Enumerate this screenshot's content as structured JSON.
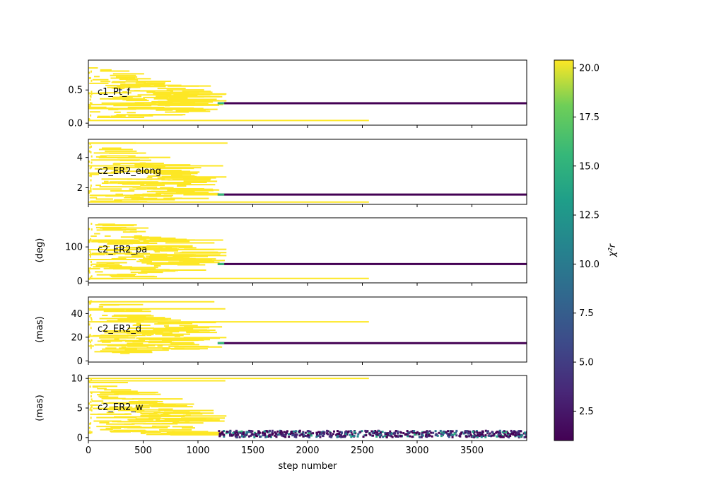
{
  "chart_data": {
    "type": "scatter",
    "xlabel": "step number",
    "xlim": [
      0,
      4000
    ],
    "xticks": [
      0,
      500,
      1000,
      1500,
      2000,
      2500,
      3000,
      3500
    ],
    "colors": {
      "low": "#440154",
      "high": "#fde725"
    },
    "colorbar": {
      "label": "χ²r",
      "range": [
        1.0,
        20.4
      ],
      "ticks": [
        2.5,
        5.0,
        7.5,
        10.0,
        12.5,
        15.0,
        17.5,
        20.0
      ],
      "tick_labels": [
        "2.5",
        "5.0",
        "7.5",
        "10.0",
        "12.5",
        "15.0",
        "17.5",
        "20.0"
      ]
    },
    "panels": [
      {
        "name": "c1_Pt_f",
        "ylabel": "",
        "ylim": [
          -0.03,
          0.95
        ],
        "yticks": [
          0.0,
          0.5
        ],
        "ytick_labels": [
          "0.0",
          "0.5"
        ],
        "converged": 0.3,
        "spread": 0.006,
        "early_min": 0.0,
        "early_max": 0.85,
        "lines": [
          {
            "y": 0.04,
            "x_end": 2560
          },
          {
            "y": 0.22,
            "x_end": 1050
          },
          {
            "y": 0.28,
            "x_end": 1230
          }
        ]
      },
      {
        "name": "c2_ER2_elong",
        "ylabel": "",
        "ylim": [
          0.9,
          5.2
        ],
        "yticks": [
          2,
          4
        ],
        "ytick_labels": [
          "2",
          "4"
        ],
        "converged": 1.55,
        "spread": 0.02,
        "early_min": 1.0,
        "early_max": 5.0,
        "lines": [
          {
            "y": 1.05,
            "x_end": 2560
          },
          {
            "y": 4.95,
            "x_end": 1270
          },
          {
            "y": 3.45,
            "x_end": 1230
          }
        ]
      },
      {
        "name": "c2_ER2_pa",
        "ylabel": "(deg)",
        "ylim": [
          -5,
          185
        ],
        "yticks": [
          0,
          100
        ],
        "ytick_labels": [
          "0",
          "100"
        ],
        "converged": 50,
        "spread": 1.0,
        "early_min": 5,
        "early_max": 180,
        "lines": [
          {
            "y": 8,
            "x_end": 2560
          },
          {
            "y": 92,
            "x_end": 1150
          },
          {
            "y": 120,
            "x_end": 1230
          }
        ]
      },
      {
        "name": "c2_ER2_d",
        "ylabel": "(mas)",
        "ylim": [
          -1,
          54
        ],
        "yticks": [
          0,
          20,
          40
        ],
        "ytick_labels": [
          "0",
          "20",
          "40"
        ],
        "converged": 15,
        "spread": 0.3,
        "early_min": 4,
        "early_max": 52,
        "lines": [
          {
            "y": 33,
            "x_end": 2560
          },
          {
            "y": 44,
            "x_end": 1250
          },
          {
            "y": 50,
            "x_end": 1150
          }
        ]
      },
      {
        "name": "c2_ER2_w",
        "ylabel": "(mas)",
        "ylim": [
          -0.5,
          10.5
        ],
        "yticks": [
          0,
          5,
          10
        ],
        "ytick_labels": [
          "0",
          "5",
          "10"
        ],
        "converged": 0.6,
        "spread": 0.55,
        "early_min": 0.3,
        "early_max": 10.0,
        "lines": [
          {
            "y": 10.0,
            "x_end": 2560
          },
          {
            "y": 9.6,
            "x_end": 1250
          }
        ]
      }
    ]
  }
}
